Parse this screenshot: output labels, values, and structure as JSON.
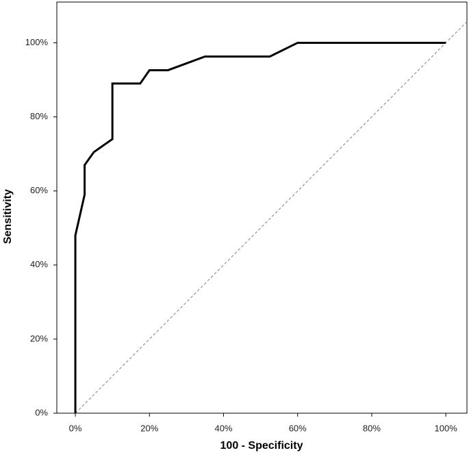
{
  "chart_data": {
    "type": "line",
    "x_label": "100 - Specificity",
    "y_label": "Sensitivity",
    "x": [
      0,
      0,
      2.5,
      2.5,
      5,
      10,
      10,
      17.5,
      20,
      25,
      35,
      52.5,
      60,
      100
    ],
    "series": [
      {
        "color": "#000000",
        "values": [
          0,
          48,
          59,
          67,
          70.5,
          74,
          89,
          89,
          92.6,
          92.6,
          96.3,
          96.3,
          100,
          100
        ]
      }
    ],
    "reference_line": {
      "color": "#808080",
      "dashed": true
    },
    "xlim": [
      -5,
      105.7
    ],
    "ylim": [
      0,
      111
    ],
    "xticks": [
      {
        "value": 0,
        "label": "0%"
      },
      {
        "value": 20,
        "label": "20%"
      },
      {
        "value": 40,
        "label": "40%"
      },
      {
        "value": 60,
        "label": "60%"
      },
      {
        "value": 80,
        "label": "80%"
      },
      {
        "value": 100,
        "label": "100%"
      }
    ],
    "yticks": [
      {
        "value": 0,
        "label": "0%"
      },
      {
        "value": 20,
        "label": "20%"
      },
      {
        "value": 40,
        "label": "40%"
      },
      {
        "value": 60,
        "label": "60%"
      },
      {
        "value": 80,
        "label": "80%"
      },
      {
        "value": 100,
        "label": "100%"
      }
    ],
    "grid": false
  }
}
